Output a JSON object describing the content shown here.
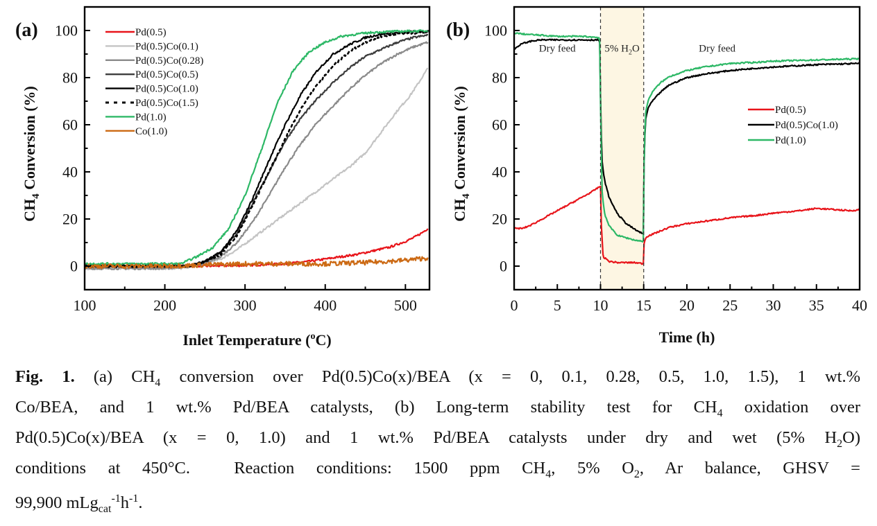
{
  "chart_data": [
    {
      "id": "a",
      "type": "line",
      "panel_label": "(a)",
      "title": "",
      "xlabel": "Inlet Temperature (oC)",
      "xlabel_parts": {
        "pre": "Inlet Temperature (",
        "sup": "o",
        "post": "C)"
      },
      "ylabel": "CH4 Conversion (%)",
      "ylabel_parts": {
        "pre": "CH",
        "sub": "4",
        "post": " Conversion (%)"
      },
      "xlim": [
        100,
        530
      ],
      "ylim": [
        -10,
        110
      ],
      "xticks": [
        100,
        200,
        300,
        400,
        500
      ],
      "xticks_minor": [
        150,
        250,
        350,
        450
      ],
      "yticks": [
        0,
        20,
        40,
        60,
        80,
        100
      ],
      "yticks_minor": [
        10,
        30,
        50,
        70,
        90
      ],
      "grid": false,
      "legend_position": "top-left",
      "series": [
        {
          "name": "Pd(0.5)",
          "color": "#e8141a",
          "dash": false,
          "x": [
            100,
            200,
            250,
            300,
            350,
            380,
            400,
            420,
            440,
            460,
            480,
            500,
            510,
            520,
            528
          ],
          "y": [
            0,
            0,
            0,
            0.3,
            1,
            2,
            3,
            4,
            5,
            6.5,
            8,
            10.5,
            12,
            14,
            16
          ]
        },
        {
          "name": "Pd(0.5)Co(0.1)",
          "color": "#c4c4c4",
          "dash": false,
          "x": [
            100,
            200,
            220,
            250,
            270,
            290,
            310,
            330,
            350,
            370,
            390,
            410,
            430,
            450,
            470,
            490,
            505,
            515,
            528
          ],
          "y": [
            -1,
            -1,
            -1,
            1,
            3,
            7,
            12,
            17,
            22,
            27,
            32,
            37,
            42,
            48,
            57,
            66,
            72,
            77,
            84
          ]
        },
        {
          "name": "Pd(0.5)Co(0.28)",
          "color": "#8a8a8a",
          "dash": false,
          "x": [
            100,
            200,
            230,
            250,
            270,
            290,
            310,
            330,
            350,
            370,
            390,
            410,
            430,
            450,
            470,
            490,
            510,
            528
          ],
          "y": [
            -1,
            -1,
            0,
            1,
            4,
            10,
            19,
            30,
            42,
            52,
            61,
            68,
            75,
            81,
            86,
            90,
            93,
            95
          ]
        },
        {
          "name": "Pd(0.5)Co(0.5)",
          "color": "#3c3c3c",
          "dash": false,
          "x": [
            100,
            200,
            230,
            250,
            270,
            290,
            310,
            330,
            350,
            370,
            390,
            410,
            430,
            450,
            470,
            490,
            510,
            528
          ],
          "y": [
            0,
            0,
            0,
            2,
            6,
            14,
            27,
            40,
            53,
            63,
            71,
            78,
            84,
            89,
            92,
            95,
            97,
            98
          ]
        },
        {
          "name": "Pd(0.5)Co(1.0)",
          "color": "#000000",
          "dash": false,
          "x": [
            100,
            200,
            230,
            250,
            270,
            290,
            310,
            330,
            350,
            370,
            390,
            410,
            430,
            450,
            470,
            490,
            510,
            528
          ],
          "y": [
            0,
            0,
            0,
            2,
            6,
            15,
            29,
            45,
            60,
            73,
            83,
            90,
            94,
            97,
            98.5,
            99,
            99.5,
            99.5
          ]
        },
        {
          "name": "Pd(0.5)Co(1.5)",
          "color": "#000000",
          "dash": true,
          "x": [
            100,
            200,
            230,
            250,
            270,
            290,
            310,
            330,
            350,
            370,
            390,
            410,
            430,
            450,
            470,
            490,
            510,
            528
          ],
          "y": [
            0,
            0,
            0,
            2,
            5,
            13,
            26,
            40,
            54,
            67,
            77,
            85,
            91,
            95,
            97.5,
            98.5,
            99,
            99.5
          ]
        },
        {
          "name": "Pd(1.0)",
          "color": "#2db866",
          "dash": false,
          "x": [
            100,
            200,
            220,
            240,
            260,
            280,
            300,
            320,
            340,
            360,
            380,
            400,
            420,
            440,
            460,
            480,
            500,
            528
          ],
          "y": [
            1,
            1,
            1,
            4,
            8,
            16,
            30,
            49,
            69,
            83,
            91,
            95,
            97.5,
            98.5,
            99.2,
            99.5,
            99.7,
            99.8
          ]
        },
        {
          "name": "Co(1.0)",
          "color": "#cc6a14",
          "dash": false,
          "x": [
            100,
            200,
            250,
            300,
            350,
            400,
            450,
            500,
            528
          ],
          "y": [
            0,
            0,
            0.5,
            1,
            1,
            1,
            1.5,
            2.5,
            3.5
          ]
        }
      ]
    },
    {
      "id": "b",
      "type": "line",
      "panel_label": "(b)",
      "title": "",
      "xlabel": "Time (h)",
      "ylabel": "CH4 Conversion (%)",
      "ylabel_parts": {
        "pre": "CH",
        "sub": "4",
        "post": " Conversion (%)"
      },
      "xlim": [
        0,
        40
      ],
      "ylim": [
        -10,
        110
      ],
      "xticks": [
        0,
        5,
        10,
        15,
        20,
        25,
        30,
        35,
        40
      ],
      "xticks_minor": [
        2.5,
        7.5,
        12.5,
        17.5,
        22.5,
        27.5,
        32.5,
        37.5
      ],
      "yticks": [
        0,
        20,
        40,
        60,
        80,
        100
      ],
      "yticks_minor": [
        -10,
        10,
        30,
        50,
        70,
        90
      ],
      "grid": false,
      "legend_position": "center-right",
      "shaded_region": {
        "x": [
          10,
          15
        ],
        "color": "#fdf6e3",
        "label": "5% H2O"
      },
      "vlines_dashed": [
        10,
        15
      ],
      "annotations": [
        {
          "text": "Dry feed",
          "x": 5,
          "y": 91
        },
        {
          "text_pre": "5% H",
          "text_sub": "2",
          "text_post": "O",
          "x": 12.5,
          "y": 91
        },
        {
          "text": "Dry feed",
          "x": 23.5,
          "y": 91
        }
      ],
      "series": [
        {
          "name": "Pd(0.5)",
          "color": "#e8141a",
          "x": [
            0,
            1,
            2,
            3,
            4,
            5,
            6,
            7,
            8,
            9,
            10,
            10.05,
            10.3,
            11,
            12,
            13,
            14,
            15,
            15.05,
            15.3,
            16,
            17,
            18,
            20,
            22,
            25,
            28,
            30,
            33,
            35,
            37,
            39,
            40
          ],
          "y": [
            16,
            16,
            17.5,
            19.5,
            21.5,
            23.5,
            25.5,
            27.5,
            29.5,
            31.5,
            34,
            20,
            4,
            2,
            1.5,
            1.5,
            1.5,
            1,
            10,
            12.5,
            13.5,
            15,
            16.5,
            18,
            19,
            20.5,
            21.5,
            22.5,
            23.5,
            24.5,
            24,
            23.5,
            24
          ]
        },
        {
          "name": "Pd(0.5)Co(1.0)",
          "color": "#000000",
          "x": [
            0,
            0.5,
            1,
            2,
            3,
            5,
            8,
            9.9,
            10.05,
            10.2,
            10.5,
            11,
            12,
            13,
            14,
            15,
            15.05,
            15.2,
            15.5,
            16,
            17,
            18,
            20,
            22,
            25,
            28,
            30,
            35,
            40
          ],
          "y": [
            92,
            93.5,
            94.5,
            95.5,
            96,
            96,
            96,
            96,
            60,
            43,
            36,
            29,
            22,
            18,
            15.5,
            13.5,
            45,
            62,
            67,
            70,
            74,
            77,
            80,
            81.5,
            83,
            84,
            84.5,
            85.5,
            86
          ]
        },
        {
          "name": "Pd(1.0)",
          "color": "#2db866",
          "x": [
            0,
            1,
            3,
            5,
            8,
            9.9,
            10.05,
            10.2,
            10.5,
            11,
            12,
            13,
            14,
            15,
            15.05,
            15.2,
            15.5,
            16,
            17,
            18,
            20,
            22,
            25,
            28,
            30,
            35,
            40
          ],
          "y": [
            99,
            98.5,
            98,
            97.5,
            97.5,
            97,
            55,
            30,
            22,
            17,
            13,
            12,
            11,
            10.5,
            45,
            65,
            70,
            74,
            78,
            80.5,
            83,
            84.5,
            86,
            86.5,
            87,
            87.5,
            88
          ]
        }
      ]
    }
  ],
  "caption": {
    "lines": [
      [
        {
          "b": "Fig. 1."
        },
        {
          "t": " (a) CH"
        },
        {
          "sub": "4"
        },
        {
          "t": " conversion over Pd(0.5)Co(x)/BEA (x = 0, 0.1, 0.28, 0.5, 1.0, 1.5), 1 wt.%"
        }
      ],
      [
        {
          "t": "Co/BEA, and 1 wt.% Pd/BEA catalysts, (b) Long-term stability test for CH"
        },
        {
          "sub": "4"
        },
        {
          "t": " oxidation over"
        }
      ],
      [
        {
          "t": "Pd(0.5)Co(x)/BEA (x = 0, 1.0) and 1 wt.% Pd/BEA catalysts under dry and wet (5% H"
        },
        {
          "sub": "2"
        },
        {
          "t": "O)"
        }
      ],
      [
        {
          "t": "conditions at 450°C.  Reaction conditions: 1500 ppm CH"
        },
        {
          "sub": "4"
        },
        {
          "t": ", 5% O"
        },
        {
          "sub": "2"
        },
        {
          "t": ", Ar balance, GHSV ="
        }
      ],
      [
        {
          "t": "99,900 mLg"
        },
        {
          "sub": "cat"
        },
        {
          "sup": "-1"
        },
        {
          "t": "h"
        },
        {
          "sup": "-1"
        },
        {
          "t": "."
        }
      ]
    ]
  }
}
